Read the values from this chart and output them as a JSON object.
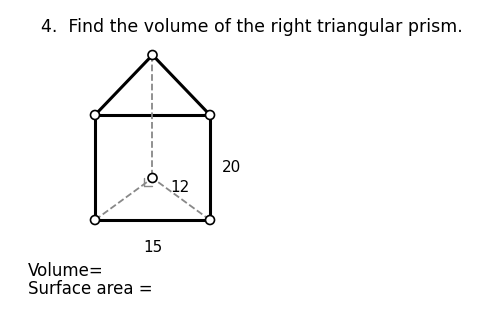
{
  "title": "4.  Find the volume of the right triangular prism.",
  "title_fontsize": 12.5,
  "bg_color": "#ffffff",
  "label_20": "20",
  "label_15": "15",
  "label_12": "12",
  "volume_text": "Volume=",
  "surface_text": "Surface area =",
  "line_color": "#000000",
  "dashed_color": "#888888",
  "node_color": "#ffffff",
  "node_edge_color": "#000000",
  "lw_main": 2.2,
  "lw_dashed": 1.3,
  "font_size_labels": 11,
  "font_size_bottom": 12
}
